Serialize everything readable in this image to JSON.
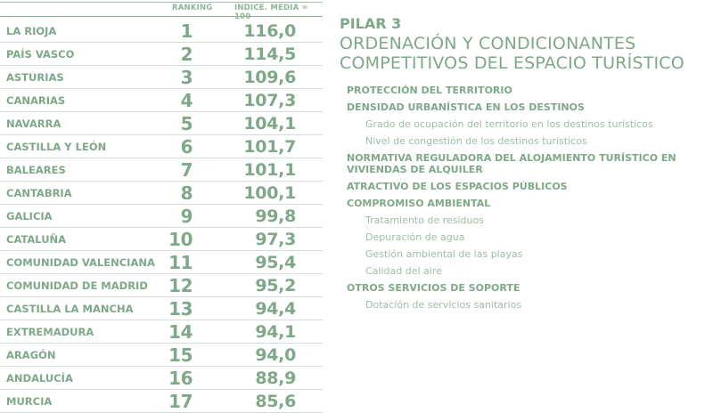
{
  "table": {
    "header": {
      "ranking": "RANKING",
      "index": "INDICE. MEDIA = 100"
    },
    "rows": [
      {
        "region": "LA RIOJA",
        "rank": "1",
        "index": "116,0"
      },
      {
        "region": "PAÍS VASCO",
        "rank": "2",
        "index": "114,5"
      },
      {
        "region": "ASTURIAS",
        "rank": "3",
        "index": "109,6"
      },
      {
        "region": "CANARIAS",
        "rank": "4",
        "index": "107,3"
      },
      {
        "region": "NAVARRA",
        "rank": "5",
        "index": "104,1"
      },
      {
        "region": "CASTILLA Y LEÓN",
        "rank": "6",
        "index": "101,7"
      },
      {
        "region": "BALEARES",
        "rank": "7",
        "index": "101,1"
      },
      {
        "region": "CANTABRIA",
        "rank": "8",
        "index": "100,1"
      },
      {
        "region": "GALICIA",
        "rank": "9",
        "index": "99,8"
      },
      {
        "region": "CATALUÑA",
        "rank": "10",
        "index": "97,3"
      },
      {
        "region": "COMUNIDAD VALENCIANA",
        "rank": "11",
        "index": "95,4"
      },
      {
        "region": "COMUNIDAD DE MADRID",
        "rank": "12",
        "index": "95,2"
      },
      {
        "region": "CASTILLA LA MANCHA",
        "rank": "13",
        "index": "94,4"
      },
      {
        "region": "EXTREMADURA",
        "rank": "14",
        "index": "94,1"
      },
      {
        "region": "ARAGÓN",
        "rank": "15",
        "index": "94,0"
      },
      {
        "region": "ANDALUCÍA",
        "rank": "16",
        "index": "88,9"
      },
      {
        "region": "MURCIA",
        "rank": "17",
        "index": "85,6"
      }
    ]
  },
  "pillar": {
    "label": "PILAR 3",
    "title_line1": "ORDENACIÓN Y CONDICIONANTES",
    "title_line2": "COMPETITIVOS DEL ESPACIO TURÍSTICO",
    "items": [
      {
        "text": "PROTECCIÓN DEL TERRITORIO",
        "level": 0
      },
      {
        "text": "DENSIDAD URBANÍSTICA EN LOS DESTINOS",
        "level": 0
      },
      {
        "text": "Grado de ocupación del territorio en los destinos turísticos",
        "level": 1
      },
      {
        "text": "Nivel de congestión de los destinos turísticos",
        "level": 1
      },
      {
        "text": "NORMATIVA REGULADORA DEL ALOJAMIENTO TURÍSTICO EN VIVIENDAS DE ALQUILER",
        "level": 0
      },
      {
        "text": "ATRACTIVO DE LOS ESPACIOS PÚBLICOS",
        "level": 0
      },
      {
        "text": "COMPROMISO AMBIENTAL",
        "level": 0
      },
      {
        "text": "Tratamiento de residuos",
        "level": 1
      },
      {
        "text": "Depuración de agua",
        "level": 1
      },
      {
        "text": "Gestión ambiental de las playas",
        "level": 1
      },
      {
        "text": "Calidad del aire",
        "level": 1
      },
      {
        "text": "OTROS SERVICIOS DE SOPORTE",
        "level": 0
      },
      {
        "text": "Dotación de servicios sanitarios",
        "level": 1
      }
    ]
  }
}
